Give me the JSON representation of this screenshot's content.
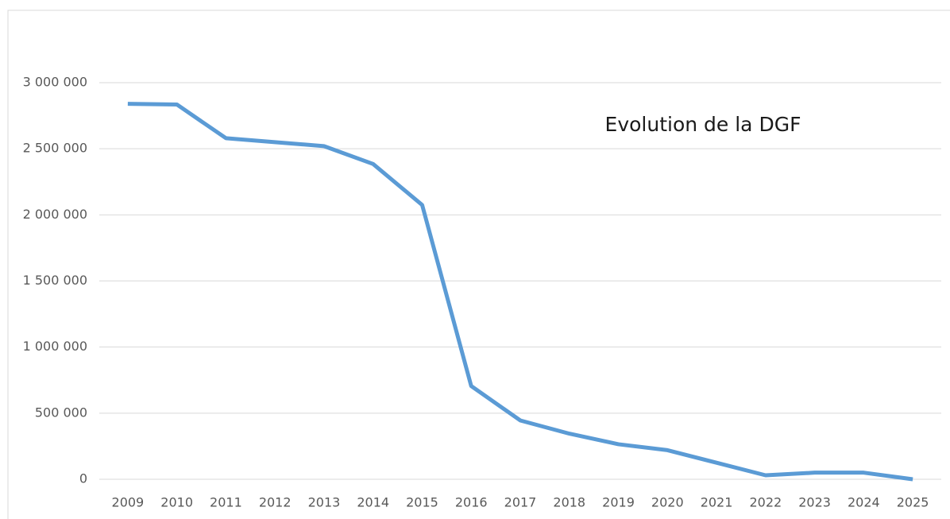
{
  "chart_data": {
    "type": "line",
    "title": "Evolution de la DGF",
    "categories": [
      "2009",
      "2010",
      "2011",
      "2012",
      "2013",
      "2014",
      "2015",
      "2016",
      "2017",
      "2018",
      "2019",
      "2020",
      "2021",
      "2022",
      "2023",
      "2024",
      "2025"
    ],
    "series": [
      {
        "color": "#5b9bd5",
        "values": [
          2840000,
          2835000,
          2580000,
          2550000,
          2520000,
          2385000,
          2075000,
          705000,
          445000,
          345000,
          265000,
          220000,
          125000,
          30000,
          50000,
          50000,
          0
        ]
      }
    ],
    "ylim": [
      0,
      3000000
    ],
    "yticks": [
      0,
      {
        "value": 500000,
        "label": "500 000"
      },
      {
        "value": 1000000,
        "label": "1 000 000"
      },
      {
        "value": 1500000,
        "label": "1 500 000"
      },
      {
        "value": 2000000,
        "label": "2 000 000"
      },
      {
        "value": 2500000,
        "label": "2 500 000"
      },
      {
        "value": 3000000,
        "label": "3 000 000"
      }
    ],
    "grid": true
  }
}
